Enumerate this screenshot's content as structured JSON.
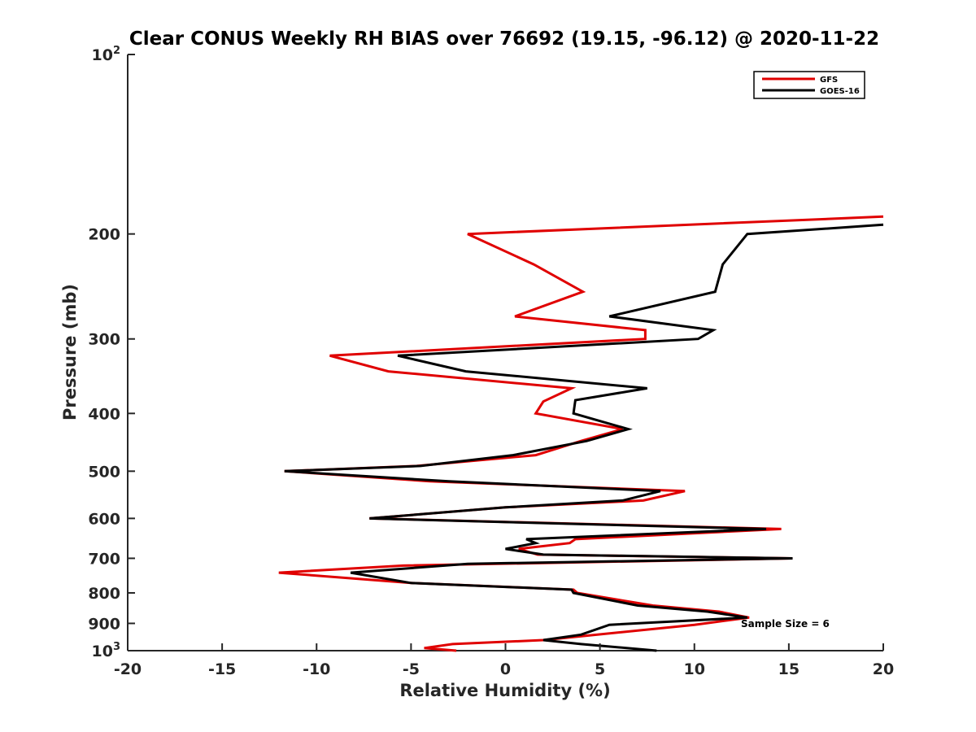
{
  "chart_data": {
    "type": "line",
    "title": "Clear CONUS Weekly RH BIAS over 76692 (19.15, -96.12) @ 2020-11-22",
    "xlabel": "Relative Humidity (%)",
    "ylabel": "Pressure (mb)",
    "xlim": [
      -20,
      20
    ],
    "ylim": [
      100,
      1000
    ],
    "yscale": "log",
    "yreversed": true,
    "grid": false,
    "legend_position": "top-right",
    "x_ticks": [
      {
        "value": -20,
        "label": "-20"
      },
      {
        "value": -15,
        "label": "-15"
      },
      {
        "value": -10,
        "label": "-10"
      },
      {
        "value": -5,
        "label": "-5"
      },
      {
        "value": 0,
        "label": "0"
      },
      {
        "value": 5,
        "label": "5"
      },
      {
        "value": 10,
        "label": "10"
      },
      {
        "value": 15,
        "label": "15"
      },
      {
        "value": 20,
        "label": "20"
      }
    ],
    "y_ticks": [
      {
        "value": 100,
        "label": "10",
        "sup": "2"
      },
      {
        "value": 200,
        "label": "200"
      },
      {
        "value": 300,
        "label": "300"
      },
      {
        "value": 400,
        "label": "400"
      },
      {
        "value": 500,
        "label": "500"
      },
      {
        "value": 600,
        "label": "600"
      },
      {
        "value": 700,
        "label": "700"
      },
      {
        "value": 800,
        "label": "800"
      },
      {
        "value": 900,
        "label": "900"
      },
      {
        "value": 1000,
        "label": "10",
        "sup": "3"
      }
    ],
    "annotation": "Sample Size = 6",
    "series": [
      {
        "name": "GFS",
        "color": "#e00000",
        "points": [
          [
            20.0,
            187
          ],
          [
            -2.0,
            200
          ],
          [
            1.5,
            225
          ],
          [
            4.1,
            250
          ],
          [
            0.5,
            275
          ],
          [
            7.4,
            290
          ],
          [
            7.4,
            300
          ],
          [
            -9.3,
            320
          ],
          [
            -6.2,
            340
          ],
          [
            3.5,
            363
          ],
          [
            2.0,
            382
          ],
          [
            1.6,
            400
          ],
          [
            6.2,
            425
          ],
          [
            4.0,
            445
          ],
          [
            1.6,
            470
          ],
          [
            -4.7,
            490
          ],
          [
            -11.7,
            500
          ],
          [
            -4.0,
            520
          ],
          [
            9.5,
            540
          ],
          [
            7.3,
            560
          ],
          [
            0.0,
            575
          ],
          [
            -7.2,
            600
          ],
          [
            14.6,
            625
          ],
          [
            3.7,
            650
          ],
          [
            3.4,
            660
          ],
          [
            0.7,
            675
          ],
          [
            1.7,
            690
          ],
          [
            15.2,
            700
          ],
          [
            -5.4,
            720
          ],
          [
            -12.0,
            740
          ],
          [
            -5.0,
            770
          ],
          [
            3.6,
            790
          ],
          [
            3.8,
            800
          ],
          [
            7.8,
            840
          ],
          [
            11.3,
            860
          ],
          [
            12.9,
            880
          ],
          [
            10.0,
            905
          ],
          [
            2.0,
            960
          ],
          [
            -2.8,
            975
          ],
          [
            -4.3,
            990
          ],
          [
            -2.6,
            1000
          ]
        ]
      },
      {
        "name": "GOES-16",
        "color": "#000000",
        "points": [
          [
            20.0,
            193
          ],
          [
            12.8,
            200
          ],
          [
            11.5,
            225
          ],
          [
            11.1,
            250
          ],
          [
            5.5,
            275
          ],
          [
            11.0,
            290
          ],
          [
            10.2,
            300
          ],
          [
            -5.7,
            320
          ],
          [
            -2.1,
            340
          ],
          [
            7.5,
            363
          ],
          [
            3.7,
            380
          ],
          [
            3.6,
            400
          ],
          [
            6.5,
            425
          ],
          [
            4.3,
            445
          ],
          [
            0.4,
            470
          ],
          [
            -4.5,
            490
          ],
          [
            -11.7,
            500
          ],
          [
            -3.0,
            520
          ],
          [
            8.2,
            540
          ],
          [
            6.2,
            560
          ],
          [
            0.0,
            575
          ],
          [
            -7.2,
            600
          ],
          [
            13.8,
            625
          ],
          [
            1.1,
            650
          ],
          [
            1.6,
            660
          ],
          [
            0.0,
            675
          ],
          [
            2.0,
            690
          ],
          [
            15.2,
            700
          ],
          [
            -2.0,
            715
          ],
          [
            -8.2,
            740
          ],
          [
            -5.0,
            770
          ],
          [
            3.5,
            790
          ],
          [
            3.6,
            800
          ],
          [
            7.0,
            840
          ],
          [
            10.7,
            860
          ],
          [
            12.8,
            880
          ],
          [
            5.5,
            905
          ],
          [
            4.0,
            940
          ],
          [
            2.0,
            960
          ],
          [
            4.0,
            975
          ],
          [
            8.0,
            1000
          ]
        ]
      }
    ]
  }
}
